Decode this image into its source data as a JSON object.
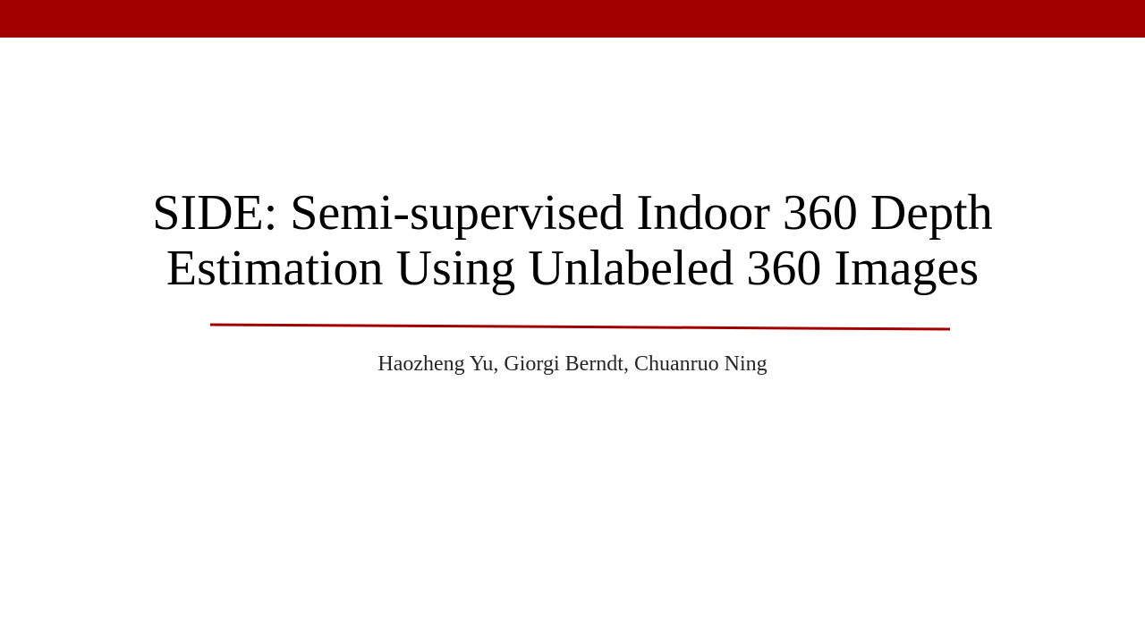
{
  "slide": {
    "title_lines": [
      "SIDE: Semi-supervised Indoor 360 Depth",
      "Estimation Using Unlabeled 360 Images"
    ],
    "authors": "Haozheng Yu, Giorgi Berndt, Chuanruo Ning"
  },
  "colors": {
    "accent": "#a20000",
    "title_text": "#000000",
    "author_text": "#262626",
    "background": "#ffffff"
  }
}
